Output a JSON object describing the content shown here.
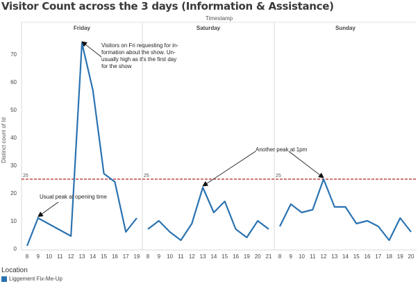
{
  "chart_data": {
    "type": "line",
    "title": "Visitor Count across the 3 days (Information & Assistance)",
    "column_header": "Timestamp",
    "ylabel": "Distinct count of Id",
    "ylim": [
      0,
      78
    ],
    "yticks": [
      0,
      10,
      20,
      30,
      40,
      50,
      60,
      70
    ],
    "reference_line": {
      "value": 25,
      "label": "25",
      "color": "#b22222"
    },
    "line_color": "#2a72b0",
    "panels": [
      {
        "name": "Friday",
        "x": [
          "8",
          "9",
          "10",
          "11",
          "12",
          "13",
          "14",
          "15",
          "16",
          "17",
          "19"
        ],
        "values": [
          1,
          11,
          null,
          null,
          4.5,
          74,
          57,
          27,
          24,
          6,
          11
        ]
      },
      {
        "name": "Saturday",
        "x": [
          "8",
          "9",
          "10",
          "11",
          "12",
          "13",
          "14",
          "15",
          "16",
          "19",
          "20",
          "21"
        ],
        "values": [
          7,
          10,
          6,
          3,
          9,
          22,
          13,
          17,
          7,
          4,
          10,
          7
        ]
      },
      {
        "name": "Sunday",
        "x": [
          "8",
          "9",
          "10",
          "11",
          "12",
          "13",
          "14",
          "15",
          "16",
          "17",
          "18",
          "19",
          "20"
        ],
        "values": [
          8,
          16,
          13,
          14,
          25,
          15,
          15,
          9,
          10,
          8,
          3,
          11,
          6
        ]
      }
    ],
    "annotations": [
      {
        "panel": 0,
        "target_index": 5,
        "text": [
          "Visitors on Fri requesting for in-",
          "formation about the show. Un-",
          "usually high as it's the first day",
          "for the show"
        ]
      },
      {
        "panel": 0,
        "target_index": 1,
        "text": [
          "Usual peak at opening time"
        ]
      },
      {
        "panel": 1,
        "target_index": 5,
        "text": [
          "Another peak at 1pm"
        ]
      },
      {
        "panel": 2,
        "target_index": 4,
        "text": []
      }
    ]
  },
  "legend": {
    "title": "Location",
    "items": [
      {
        "label": "Liggement Fix-Me-Up",
        "color": "#2a72b0"
      }
    ]
  }
}
